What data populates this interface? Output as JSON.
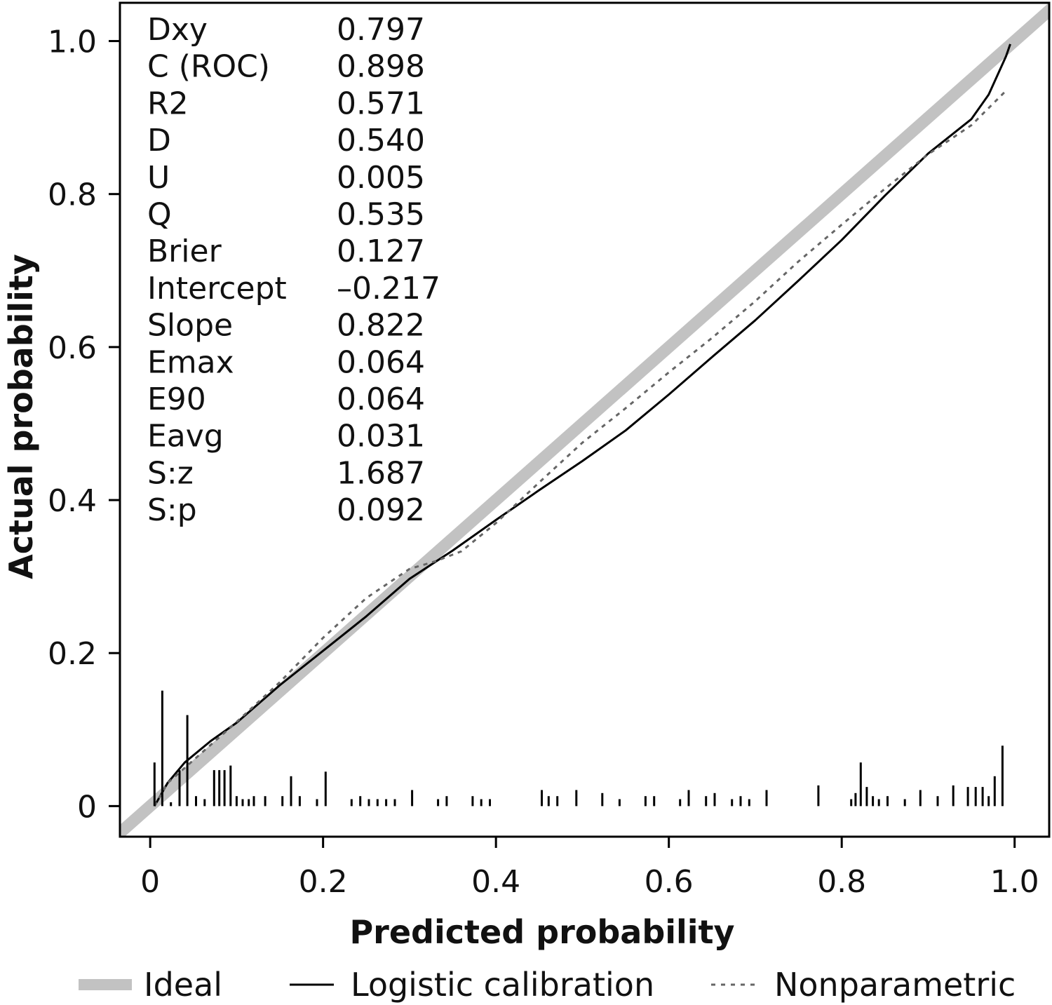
{
  "chart_data": {
    "type": "line",
    "xlabel": "Predicted probability",
    "ylabel": "Actual probability",
    "xlim": [
      -0.035,
      1.04
    ],
    "ylim": [
      -0.04,
      1.05
    ],
    "x_ticks": [
      {
        "value": 0,
        "label": "0"
      },
      {
        "value": 0.2,
        "label": "0.2"
      },
      {
        "value": 0.4,
        "label": "0.4"
      },
      {
        "value": 0.6,
        "label": "0.6"
      },
      {
        "value": 0.8,
        "label": "0.8"
      },
      {
        "value": 1.0,
        "label": "1.0"
      }
    ],
    "y_ticks": [
      {
        "value": 0,
        "label": "0"
      },
      {
        "value": 0.2,
        "label": "0.2"
      },
      {
        "value": 0.4,
        "label": "0.4"
      },
      {
        "value": 0.6,
        "label": "0.6"
      },
      {
        "value": 0.8,
        "label": "0.8"
      },
      {
        "value": 1.0,
        "label": "1.0"
      }
    ],
    "grid": false,
    "legend_position": "bottom",
    "stats": [
      {
        "label": "Dxy",
        "value": "0.797"
      },
      {
        "label": "C (ROC)",
        "value": "0.898"
      },
      {
        "label": "R2",
        "value": "0.571"
      },
      {
        "label": "D",
        "value": "0.540"
      },
      {
        "label": "U",
        "value": "0.005"
      },
      {
        "label": "Q",
        "value": "0.535"
      },
      {
        "label": "Brier",
        "value": "0.127"
      },
      {
        "label": "Intercept",
        "value": "–0.217"
      },
      {
        "label": "Slope",
        "value": "0.822"
      },
      {
        "label": "Emax",
        "value": "0.064"
      },
      {
        "label": "E90",
        "value": "0.064"
      },
      {
        "label": "Eavg",
        "value": "0.031"
      },
      {
        "label": "S:z",
        "value": "1.687"
      },
      {
        "label": "S:p",
        "value": "0.092"
      }
    ],
    "series": [
      {
        "name": "Ideal",
        "style": "thick",
        "color": "#c2c2c2",
        "x": [
          -0.05,
          1.05
        ],
        "y": [
          -0.05,
          1.05
        ]
      },
      {
        "name": "Logistic calibration",
        "style": "solid",
        "color": "#000000",
        "x": [
          0.005,
          0.02,
          0.04,
          0.07,
          0.1,
          0.15,
          0.2,
          0.25,
          0.3,
          0.35,
          0.4,
          0.45,
          0.5,
          0.55,
          0.6,
          0.65,
          0.7,
          0.75,
          0.8,
          0.85,
          0.9,
          0.95,
          0.97,
          0.99,
          0.995
        ],
        "y": [
          0.0,
          0.03,
          0.057,
          0.085,
          0.109,
          0.158,
          0.203,
          0.248,
          0.297,
          0.334,
          0.374,
          0.413,
          0.451,
          0.491,
          0.538,
          0.587,
          0.635,
          0.687,
          0.74,
          0.798,
          0.853,
          0.898,
          0.93,
          0.98,
          0.996
        ]
      },
      {
        "name": "Nonparametric",
        "style": "dashed",
        "color": "#666666",
        "x": [
          0.005,
          0.02,
          0.05,
          0.1,
          0.15,
          0.2,
          0.25,
          0.3,
          0.33,
          0.36,
          0.4,
          0.45,
          0.5,
          0.55,
          0.6,
          0.65,
          0.7,
          0.75,
          0.8,
          0.85,
          0.9,
          0.95,
          0.99
        ],
        "y": [
          0.0,
          0.03,
          0.06,
          0.11,
          0.162,
          0.22,
          0.272,
          0.31,
          0.32,
          0.333,
          0.37,
          0.423,
          0.475,
          0.52,
          0.567,
          0.612,
          0.66,
          0.712,
          0.76,
          0.807,
          0.852,
          0.89,
          0.935
        ]
      }
    ],
    "rug": {
      "x": [
        0.005,
        0.014,
        0.024,
        0.034,
        0.043,
        0.053,
        0.063,
        0.074,
        0.08,
        0.086,
        0.093,
        0.1,
        0.107,
        0.114,
        0.12,
        0.133,
        0.153,
        0.163,
        0.173,
        0.193,
        0.203,
        0.233,
        0.243,
        0.253,
        0.263,
        0.273,
        0.283,
        0.303,
        0.333,
        0.343,
        0.373,
        0.383,
        0.393,
        0.453,
        0.461,
        0.471,
        0.493,
        0.523,
        0.543,
        0.573,
        0.583,
        0.613,
        0.623,
        0.643,
        0.653,
        0.673,
        0.683,
        0.693,
        0.713,
        0.773,
        0.811,
        0.816,
        0.822,
        0.829,
        0.836,
        0.843,
        0.853,
        0.873,
        0.891,
        0.911,
        0.929,
        0.946,
        0.955,
        0.963,
        0.97,
        0.977,
        0.986
      ],
      "y": [
        0.057,
        0.151,
        0.005,
        0.047,
        0.119,
        0.013,
        0.009,
        0.047,
        0.047,
        0.047,
        0.053,
        0.013,
        0.009,
        0.009,
        0.013,
        0.013,
        0.013,
        0.039,
        0.013,
        0.009,
        0.045,
        0.009,
        0.013,
        0.009,
        0.009,
        0.009,
        0.009,
        0.021,
        0.009,
        0.013,
        0.013,
        0.009,
        0.009,
        0.021,
        0.013,
        0.013,
        0.021,
        0.017,
        0.009,
        0.013,
        0.013,
        0.009,
        0.021,
        0.013,
        0.017,
        0.009,
        0.013,
        0.009,
        0.021,
        0.027,
        0.009,
        0.017,
        0.057,
        0.025,
        0.013,
        0.009,
        0.013,
        0.009,
        0.021,
        0.013,
        0.027,
        0.025,
        0.025,
        0.025,
        0.013,
        0.039,
        0.079
      ]
    }
  },
  "legend": {
    "ideal": "Ideal",
    "logistic": "Logistic calibration",
    "nonparametric": "Nonparametric"
  }
}
